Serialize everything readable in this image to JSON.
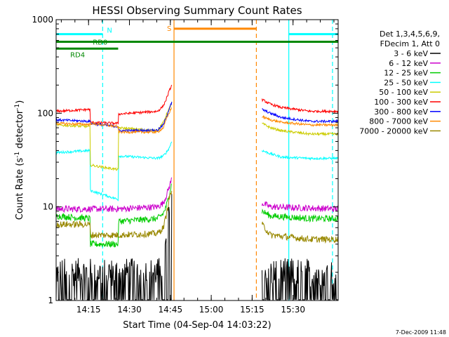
{
  "chart_data": {
    "type": "line",
    "title": "HESSI Observing Summary Count Rates",
    "xlabel": "Start Time (04-Sep-04 14:03:22)",
    "ylabel": "Count Rate (s",
    "ylabel_sup": "-1",
    "ylabel_rest": " detector",
    "ylabel_sup2": "-1",
    "ylabel_close": ")",
    "y_scale": "log",
    "ylim": [
      1,
      1000
    ],
    "xlim": [
      0,
      100
    ],
    "x_ticks": [
      {
        "x": 11.5,
        "label": "14:15"
      },
      {
        "x": 26.0,
        "label": "14:30"
      },
      {
        "x": 40.5,
        "label": "14:45"
      },
      {
        "x": 55.0,
        "label": "15:00"
      },
      {
        "x": 69.5,
        "label": "15:15"
      },
      {
        "x": 84.0,
        "label": "15:30"
      }
    ],
    "y_ticks": [
      {
        "y": 1,
        "label": "1"
      },
      {
        "y": 10,
        "label": "10"
      },
      {
        "y": 100,
        "label": "100"
      },
      {
        "y": 1000,
        "label": "1000"
      }
    ],
    "legend": {
      "placement": "right",
      "header": [
        "Det 1,3,4,5,6,9,",
        "FDecim 1, Att 0"
      ]
    },
    "series": [
      {
        "name": "3 - 6 keV",
        "color": "#000000",
        "segments": [
          {
            "x": [
              0,
              12,
              12.01,
              22,
              22.01,
              36,
              38,
              39,
              40,
              41
            ],
            "y": [
              2,
              2,
              2,
              2,
              2,
              2,
              2.5,
              4,
              8,
              15
            ]
          },
          {
            "x": [
              73,
              100
            ],
            "y": [
              2,
              2
            ]
          }
        ]
      },
      {
        "name": "6 - 12 keV",
        "color": "#cc00cc",
        "segments": [
          {
            "x": [
              0,
              12,
              12.01,
              22,
              22.01,
              36,
              38,
              39,
              40,
              41
            ],
            "y": [
              9.5,
              9.5,
              9.5,
              9.5,
              9.5,
              10,
              11,
              13,
              16,
              20
            ]
          },
          {
            "x": [
              73,
              76,
              90,
              100
            ],
            "y": [
              11,
              10,
              9.7,
              9.5
            ]
          }
        ]
      },
      {
        "name": "12 - 25 keV",
        "color": "#00cc00",
        "segments": [
          {
            "x": [
              0,
              12,
              12.01,
              22,
              22.01,
              36,
              38,
              39,
              40,
              41
            ],
            "y": [
              8,
              7.5,
              4,
              4,
              7,
              7.5,
              8.5,
              10,
              13,
              18
            ]
          },
          {
            "x": [
              73,
              76,
              90,
              100
            ],
            "y": [
              9,
              8,
              7.5,
              7.5
            ]
          }
        ]
      },
      {
        "name": "25 - 50 keV",
        "color": "#00ffff",
        "segments": [
          {
            "x": [
              0,
              12,
              12.01,
              22,
              22.01,
              36,
              38,
              39,
              40,
              41
            ],
            "y": [
              38,
              40,
              15,
              12,
              35,
              33,
              35,
              38,
              42,
              50
            ]
          },
          {
            "x": [
              73,
              76,
              80,
              90,
              100
            ],
            "y": [
              40,
              37,
              34,
              33,
              33
            ]
          }
        ]
      },
      {
        "name": "50 - 100 keV",
        "color": "#cccc00",
        "segments": [
          {
            "x": [
              0,
              12,
              12.01,
              22,
              22.01,
              36,
              38,
              39,
              40,
              41
            ],
            "y": [
              75,
              72,
              28,
              25,
              70,
              65,
              80,
              95,
              110,
              130
            ]
          },
          {
            "x": [
              73,
              76,
              80,
              90,
              100
            ],
            "y": [
              78,
              70,
              65,
              60,
              60
            ]
          }
        ]
      },
      {
        "name": "100 - 300 keV",
        "color": "#ff0000",
        "segments": [
          {
            "x": [
              0,
              12,
              12.01,
              22,
              22.01,
              36,
              38,
              39,
              40,
              41
            ],
            "y": [
              105,
              110,
              80,
              78,
              98,
              105,
              120,
              140,
              170,
              200
            ]
          },
          {
            "x": [
              73,
              76,
              80,
              90,
              100
            ],
            "y": [
              140,
              125,
              115,
              105,
              105
            ]
          }
        ]
      },
      {
        "name": "300 - 800 keV",
        "color": "#0000ff",
        "segments": [
          {
            "x": [
              0,
              12,
              12.01,
              22,
              22.01,
              36,
              38,
              39,
              40,
              41
            ],
            "y": [
              85,
              82,
              78,
              72,
              65,
              66,
              75,
              90,
              110,
              130
            ]
          },
          {
            "x": [
              73,
              76,
              80,
              90,
              100
            ],
            "y": [
              110,
              100,
              90,
              82,
              82
            ]
          }
        ]
      },
      {
        "name": "800 - 7000 keV",
        "color": "#ff8800",
        "segments": [
          {
            "x": [
              0,
              12,
              12.01,
              22,
              22.01,
              36,
              38,
              39,
              40,
              41
            ],
            "y": [
              78,
              76,
              78,
              72,
              63,
              63,
              70,
              85,
              100,
              115
            ]
          },
          {
            "x": [
              73,
              76,
              80,
              90,
              100
            ],
            "y": [
              92,
              85,
              80,
              75,
              75
            ]
          }
        ]
      },
      {
        "name": "7000 - 20000 keV",
        "color": "#998800",
        "segments": [
          {
            "x": [
              0,
              12,
              12.01,
              22,
              22.01,
              36,
              38,
              39,
              40,
              41
            ],
            "y": [
              6.5,
              6.5,
              5,
              5,
              5,
              5.2,
              6,
              8,
              12,
              15
            ]
          },
          {
            "x": [
              73,
              76,
              90,
              100
            ],
            "y": [
              6.5,
              5,
              4.5,
              4.5
            ]
          }
        ]
      }
    ],
    "vertical_lines": [
      {
        "x": 16.5,
        "color": "#00ffff",
        "style": "dashed"
      },
      {
        "x": 41.8,
        "color": "#ff8800",
        "style": "solid"
      },
      {
        "x": 71.0,
        "color": "#ff8800",
        "style": "dashed"
      },
      {
        "x": 82.5,
        "color": "#00ffff",
        "style": "solid"
      },
      {
        "x": 98.0,
        "color": "#00ffff",
        "style": "dashed"
      }
    ],
    "flag_bars": [
      {
        "label": "N",
        "color": "#00ffff",
        "y": 700,
        "ranges": [
          [
            0,
            16.5
          ],
          [
            82.5,
            100
          ]
        ]
      },
      {
        "label": "S",
        "color": "#ff8800",
        "y": 800,
        "ranges": [
          [
            41.8,
            71.0
          ]
        ]
      },
      {
        "label": "RD0",
        "color": "#008800",
        "y": 580,
        "ranges": [
          [
            0,
            100
          ]
        ]
      },
      {
        "label": "RD4",
        "color": "#008800",
        "y": 490,
        "ranges": [
          [
            0,
            22.0
          ]
        ]
      }
    ],
    "timestamp": "7-Dec-2009 11:48"
  }
}
